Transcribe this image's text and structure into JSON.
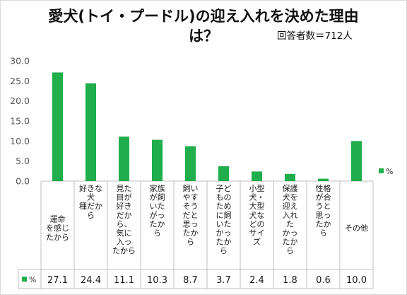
{
  "chart_data": {
    "type": "bar",
    "title_line1": "愛犬(トイ・プードル)の迎え入れを決めた理由",
    "title_line2": "は？",
    "note": "回答者数＝712人",
    "categories": [
      [
        "運命",
        "を感じ",
        "たから"
      ],
      [
        "好きな",
        "犬",
        "種だか",
        "ら"
      ],
      [
        "見た",
        "目が",
        "好き",
        "だか",
        "ら、",
        "気に",
        "入っ",
        "たから"
      ],
      [
        "家族",
        "が飼",
        "いた",
        "がっ",
        "たか",
        "ら"
      ],
      [
        "飼い",
        "やす",
        "そう",
        "だと",
        "思っ",
        "たか",
        "ら"
      ],
      [
        "子ど",
        "もの",
        "ため",
        "に飼",
        "いた",
        "かっ",
        "たか",
        "ら"
      ],
      [
        "小型",
        "犬・",
        "大型",
        "犬な",
        "どの",
        "サイ",
        "ズ"
      ],
      [
        "保護",
        "犬を",
        "迎え",
        "入れ",
        "た",
        "かっ",
        "たか",
        "ら"
      ],
      [
        "性格",
        "が合",
        "うと",
        "思っ",
        "たか",
        "ら"
      ],
      [
        "その他"
      ]
    ],
    "series": [
      {
        "name": "%",
        "values": [
          27.1,
          24.4,
          11.1,
          10.3,
          8.7,
          3.7,
          2.4,
          1.8,
          0.6,
          10.0
        ]
      }
    ],
    "value_labels": [
      "27.1",
      "24.4",
      "11.1",
      "10.3",
      "8.7",
      "3.7",
      "2.4",
      "1.8",
      "0.6",
      "10.0"
    ],
    "y_ticks": [
      "30.0",
      "25.0",
      "20.0",
      "15.0",
      "10.0",
      "5.0",
      "0.0"
    ],
    "ylim": [
      0,
      30
    ],
    "xlabel": "",
    "ylabel": "",
    "grid": false,
    "legend_position": "right",
    "data_table": true,
    "colors": {
      "bar": "#1fae4b",
      "axis": "#bfbfbf",
      "text": "#1a1a1a"
    }
  }
}
